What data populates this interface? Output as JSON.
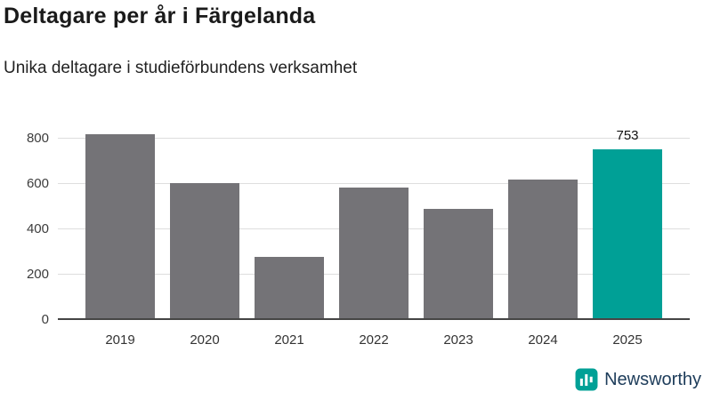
{
  "page": {
    "title": "Deltagare per år i Färgelanda",
    "subtitle": "Unika deltagare i studieförbundens verksamhet"
  },
  "chart_data": {
    "type": "bar",
    "title": "Deltagare per år i Färgelanda",
    "subtitle": "Unika deltagare i studieförbundens verksamhet",
    "xlabel": "",
    "ylabel": "",
    "categories": [
      "2019",
      "2020",
      "2021",
      "2022",
      "2023",
      "2024",
      "2025"
    ],
    "values": [
      820,
      605,
      280,
      585,
      490,
      620,
      753
    ],
    "bar_labels": [
      "",
      "",
      "",
      "",
      "",
      "",
      "753"
    ],
    "highlight_index": 6,
    "bar_color": "#747377",
    "highlight_color": "#00a096",
    "ylim": [
      0,
      870
    ],
    "yticks": [
      0,
      200,
      400,
      600,
      800
    ],
    "grid": true,
    "legend": "none"
  },
  "footer": {
    "brand": "Newsworthy",
    "icon": "bar-chart-logo-icon",
    "brand_color": "#1d3c5a",
    "icon_color": "#00a096"
  }
}
